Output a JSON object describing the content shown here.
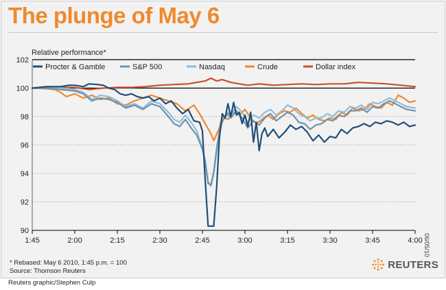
{
  "header": {
    "title": "The plunge of May 6"
  },
  "footer": {
    "footnote": "* Rebased: May 6 2010, 1:45 p.m. = 100",
    "source": "Source: Thomson Reuters",
    "credit": "Reuters graphic/Stephen Culp",
    "date": "06/05/10",
    "brand": "REUTERS"
  },
  "chart_data": {
    "type": "line",
    "title": "The plunge of May 6",
    "ylabel": "Relative performance*",
    "xlabel": "",
    "ylim": [
      90,
      102
    ],
    "xlim": [
      0,
      135
    ],
    "yticks": [
      90,
      92,
      94,
      96,
      98,
      100,
      102
    ],
    "xticks": [
      {
        "t": 0,
        "label": "1:45"
      },
      {
        "t": 15,
        "label": "2:00"
      },
      {
        "t": 30,
        "label": "2:15"
      },
      {
        "t": 45,
        "label": "2:30"
      },
      {
        "t": 60,
        "label": "2:45"
      },
      {
        "t": 75,
        "label": "3:00"
      },
      {
        "t": 90,
        "label": "3:15"
      },
      {
        "t": 105,
        "label": "3:30"
      },
      {
        "t": 120,
        "label": "3:45"
      },
      {
        "t": 135,
        "label": "4:00"
      }
    ],
    "x_units": "minutes after 1:45 p.m.",
    "legend_position": "top",
    "series": [
      {
        "name": "Dollar index",
        "color": "#c8502e",
        "points": [
          [
            0,
            100
          ],
          [
            5,
            100.05
          ],
          [
            10,
            100.05
          ],
          [
            15,
            100.05
          ],
          [
            20,
            99.9
          ],
          [
            25,
            100
          ],
          [
            30,
            100.05
          ],
          [
            35,
            100.05
          ],
          [
            40,
            100.1
          ],
          [
            45,
            100.2
          ],
          [
            50,
            100.25
          ],
          [
            55,
            100.3
          ],
          [
            58,
            100.4
          ],
          [
            61,
            100.5
          ],
          [
            63,
            100.7
          ],
          [
            65,
            100.5
          ],
          [
            67,
            100.6
          ],
          [
            70,
            100.4
          ],
          [
            73,
            100.3
          ],
          [
            76,
            100.2
          ],
          [
            80,
            100.3
          ],
          [
            85,
            100.2
          ],
          [
            90,
            100.25
          ],
          [
            95,
            100.3
          ],
          [
            100,
            100.25
          ],
          [
            105,
            100.3
          ],
          [
            110,
            100.3
          ],
          [
            115,
            100.4
          ],
          [
            120,
            100.35
          ],
          [
            125,
            100.3
          ],
          [
            130,
            100.2
          ],
          [
            135,
            100.1
          ]
        ]
      },
      {
        "name": "Crude",
        "color": "#f0892d",
        "points": [
          [
            0,
            100
          ],
          [
            5,
            99.95
          ],
          [
            8,
            99.9
          ],
          [
            10,
            99.7
          ],
          [
            12,
            99.4
          ],
          [
            15,
            99.6
          ],
          [
            18,
            99.3
          ],
          [
            21,
            99.5
          ],
          [
            24,
            99.2
          ],
          [
            27,
            99.3
          ],
          [
            30,
            98.9
          ],
          [
            33,
            98.8
          ],
          [
            36,
            99.1
          ],
          [
            39,
            99.3
          ],
          [
            42,
            99.5
          ],
          [
            45,
            99.3
          ],
          [
            48,
            99.1
          ],
          [
            51,
            98.9
          ],
          [
            54,
            98.4
          ],
          [
            57,
            98.8
          ],
          [
            59,
            98.2
          ],
          [
            61,
            97.5
          ],
          [
            63,
            96.8
          ],
          [
            64,
            96.3
          ],
          [
            66,
            97.2
          ],
          [
            67,
            98.0
          ],
          [
            69,
            97.8
          ],
          [
            71,
            98.3
          ],
          [
            73,
            98.1
          ],
          [
            75,
            98.5
          ],
          [
            77,
            97.9
          ],
          [
            79,
            97.5
          ],
          [
            81,
            97.8
          ],
          [
            83,
            98.1
          ],
          [
            85,
            97.8
          ],
          [
            87,
            98.2
          ],
          [
            89,
            98.4
          ],
          [
            91,
            98.3
          ],
          [
            93,
            98.6
          ],
          [
            95,
            98.2
          ],
          [
            97,
            97.9
          ],
          [
            99,
            98.1
          ],
          [
            101,
            97.8
          ],
          [
            103,
            97.7
          ],
          [
            105,
            97.9
          ],
          [
            107,
            97.8
          ],
          [
            109,
            98.3
          ],
          [
            111,
            98.1
          ],
          [
            113,
            98.6
          ],
          [
            115,
            98.4
          ],
          [
            117,
            98.5
          ],
          [
            119,
            98.9
          ],
          [
            121,
            98.7
          ],
          [
            123,
            98.6
          ],
          [
            125,
            99.0
          ],
          [
            127,
            98.8
          ],
          [
            129,
            99.5
          ],
          [
            131,
            99.3
          ],
          [
            133,
            99.0
          ],
          [
            135,
            99.1
          ]
        ]
      },
      {
        "name": "Nasdaq",
        "color": "#8fbcd9",
        "points": [
          [
            0,
            100
          ],
          [
            5,
            100.05
          ],
          [
            10,
            100.0
          ],
          [
            15,
            99.9
          ],
          [
            18,
            99.7
          ],
          [
            21,
            99.2
          ],
          [
            24,
            99.5
          ],
          [
            27,
            99.4
          ],
          [
            30,
            99.1
          ],
          [
            33,
            98.7
          ],
          [
            36,
            98.9
          ],
          [
            39,
            98.6
          ],
          [
            42,
            99.1
          ],
          [
            45,
            98.9
          ],
          [
            48,
            98.3
          ],
          [
            50,
            97.8
          ],
          [
            52,
            97.6
          ],
          [
            54,
            98.1
          ],
          [
            56,
            97.6
          ],
          [
            58,
            97.0
          ],
          [
            60,
            95.8
          ],
          [
            61,
            94.9
          ],
          [
            62,
            93.4
          ],
          [
            63,
            93.1
          ],
          [
            64,
            94.0
          ],
          [
            65,
            95.5
          ],
          [
            66,
            96.8
          ],
          [
            67,
            97.6
          ],
          [
            69,
            98.3
          ],
          [
            70,
            98.1
          ],
          [
            72,
            98.7
          ],
          [
            74,
            98.3
          ],
          [
            76,
            97.6
          ],
          [
            78,
            98.1
          ],
          [
            80,
            97.9
          ],
          [
            82,
            98.3
          ],
          [
            84,
            98.5
          ],
          [
            86,
            98.1
          ],
          [
            88,
            98.4
          ],
          [
            90,
            98.8
          ],
          [
            92,
            98.6
          ],
          [
            94,
            98.2
          ],
          [
            96,
            98.0
          ],
          [
            98,
            97.7
          ],
          [
            100,
            97.9
          ],
          [
            102,
            97.9
          ],
          [
            104,
            98.2
          ],
          [
            106,
            98.0
          ],
          [
            108,
            98.4
          ],
          [
            110,
            98.3
          ],
          [
            112,
            98.7
          ],
          [
            114,
            98.6
          ],
          [
            116,
            98.8
          ],
          [
            118,
            98.5
          ],
          [
            120,
            99.0
          ],
          [
            122,
            98.9
          ],
          [
            124,
            99.1
          ],
          [
            126,
            99.3
          ],
          [
            128,
            99.1
          ],
          [
            130,
            98.9
          ],
          [
            132,
            98.7
          ],
          [
            135,
            98.6
          ]
        ]
      },
      {
        "name": "S&P 500",
        "color": "#6e93ab",
        "points": [
          [
            0,
            100
          ],
          [
            5,
            100.0
          ],
          [
            10,
            99.9
          ],
          [
            15,
            99.8
          ],
          [
            18,
            99.6
          ],
          [
            21,
            99.1
          ],
          [
            24,
            99.3
          ],
          [
            27,
            99.2
          ],
          [
            30,
            99.0
          ],
          [
            33,
            98.6
          ],
          [
            36,
            98.8
          ],
          [
            39,
            98.5
          ],
          [
            42,
            98.9
          ],
          [
            45,
            98.7
          ],
          [
            48,
            98.0
          ],
          [
            50,
            97.5
          ],
          [
            52,
            97.3
          ],
          [
            54,
            97.8
          ],
          [
            56,
            97.2
          ],
          [
            58,
            96.7
          ],
          [
            60,
            95.7
          ],
          [
            61,
            94.8
          ],
          [
            62,
            93.3
          ],
          [
            63,
            93.2
          ],
          [
            64,
            94.1
          ],
          [
            65,
            95.7
          ],
          [
            66,
            97.0
          ],
          [
            67,
            97.7
          ],
          [
            69,
            98.2
          ],
          [
            70,
            97.9
          ],
          [
            72,
            98.4
          ],
          [
            74,
            97.9
          ],
          [
            76,
            97.2
          ],
          [
            78,
            97.7
          ],
          [
            80,
            97.4
          ],
          [
            82,
            97.9
          ],
          [
            84,
            98.2
          ],
          [
            86,
            97.7
          ],
          [
            88,
            98.0
          ],
          [
            90,
            98.3
          ],
          [
            92,
            98.1
          ],
          [
            94,
            97.6
          ],
          [
            96,
            97.5
          ],
          [
            98,
            97.1
          ],
          [
            100,
            97.4
          ],
          [
            102,
            97.5
          ],
          [
            104,
            97.8
          ],
          [
            106,
            97.7
          ],
          [
            108,
            98.1
          ],
          [
            110,
            98.0
          ],
          [
            112,
            98.4
          ],
          [
            114,
            98.4
          ],
          [
            116,
            98.6
          ],
          [
            118,
            98.3
          ],
          [
            120,
            98.7
          ],
          [
            122,
            98.6
          ],
          [
            124,
            98.9
          ],
          [
            126,
            99.1
          ],
          [
            128,
            98.9
          ],
          [
            130,
            98.7
          ],
          [
            132,
            98.5
          ],
          [
            135,
            98.4
          ]
        ]
      },
      {
        "name": "Procter & Gamble",
        "color": "#1f4e79",
        "points": [
          [
            0,
            100
          ],
          [
            5,
            100.1
          ],
          [
            10,
            100.1
          ],
          [
            13,
            100.2
          ],
          [
            15,
            100.2
          ],
          [
            18,
            100.1
          ],
          [
            20,
            100.3
          ],
          [
            23,
            100.25
          ],
          [
            25,
            100.2
          ],
          [
            27,
            100.0
          ],
          [
            29,
            99.9
          ],
          [
            31,
            99.6
          ],
          [
            33,
            99.5
          ],
          [
            35,
            99.6
          ],
          [
            37,
            99.4
          ],
          [
            39,
            99.3
          ],
          [
            41,
            99.4
          ],
          [
            43,
            99.1
          ],
          [
            45,
            99.3
          ],
          [
            47,
            98.9
          ],
          [
            49,
            99.1
          ],
          [
            51,
            98.6
          ],
          [
            53,
            98.2
          ],
          [
            55,
            98.5
          ],
          [
            57,
            97.7
          ],
          [
            59,
            97.6
          ],
          [
            60,
            97.0
          ],
          [
            61,
            93.5
          ],
          [
            62,
            90.3
          ],
          [
            63,
            90.3
          ],
          [
            64,
            90.3
          ],
          [
            65,
            93.0
          ],
          [
            66,
            96.5
          ],
          [
            67,
            98.2
          ],
          [
            68,
            97.9
          ],
          [
            69,
            98.9
          ],
          [
            70,
            98.0
          ],
          [
            71,
            99.0
          ],
          [
            72,
            98.1
          ],
          [
            73,
            98.3
          ],
          [
            74,
            97.5
          ],
          [
            75,
            98.1
          ],
          [
            76,
            97.3
          ],
          [
            77,
            98.3
          ],
          [
            78,
            96.2
          ],
          [
            79,
            97.6
          ],
          [
            80,
            95.6
          ],
          [
            81,
            96.8
          ],
          [
            82,
            97.2
          ],
          [
            83,
            96.6
          ],
          [
            85,
            97.1
          ],
          [
            87,
            96.5
          ],
          [
            89,
            96.9
          ],
          [
            91,
            97.4
          ],
          [
            93,
            97.1
          ],
          [
            95,
            97.3
          ],
          [
            97,
            96.9
          ],
          [
            99,
            96.3
          ],
          [
            101,
            96.7
          ],
          [
            103,
            96.2
          ],
          [
            105,
            96.6
          ],
          [
            107,
            96.5
          ],
          [
            109,
            97.1
          ],
          [
            111,
            96.8
          ],
          [
            113,
            97.2
          ],
          [
            115,
            97.3
          ],
          [
            117,
            97.5
          ],
          [
            119,
            97.3
          ],
          [
            121,
            97.6
          ],
          [
            123,
            97.5
          ],
          [
            125,
            97.7
          ],
          [
            127,
            97.6
          ],
          [
            129,
            97.4
          ],
          [
            131,
            97.6
          ],
          [
            133,
            97.3
          ],
          [
            135,
            97.4
          ]
        ]
      }
    ],
    "legend": [
      "Procter & Gamble",
      "S&P 500",
      "Nasdaq",
      "Crude",
      "Dollar index"
    ]
  }
}
